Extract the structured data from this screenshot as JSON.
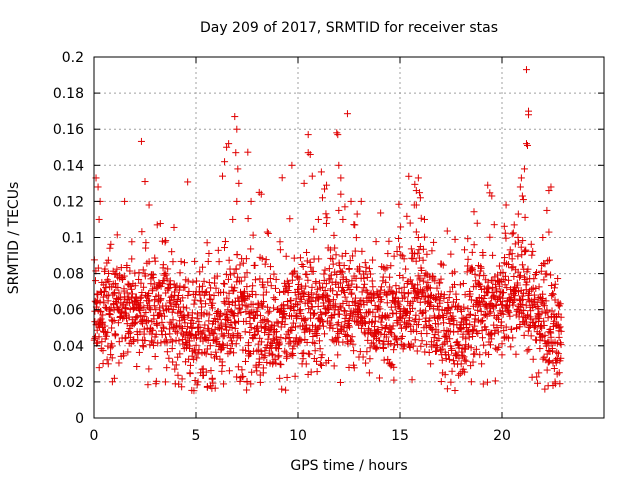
{
  "chart_data": {
    "type": "scatter",
    "title": "Day 209 of 2017, SRMTID for receiver stas",
    "xlabel": "GPS time / hours",
    "ylabel": "SRMTID / TECUs",
    "xlim": [
      0,
      25
    ],
    "ylim": [
      0,
      0.2
    ],
    "xticks": [
      0,
      5,
      10,
      15,
      20
    ],
    "xtick_labels": [
      "0",
      "5",
      "10",
      "15",
      "20"
    ],
    "yticks": [
      0,
      0.02,
      0.04,
      0.06,
      0.08,
      0.1,
      0.12,
      0.14,
      0.16,
      0.18,
      0.2
    ],
    "ytick_labels": [
      "0",
      "0.02",
      "0.04",
      "0.06",
      "0.08",
      "0.1",
      "0.12",
      "0.14",
      "0.16",
      "0.18",
      "0.2"
    ],
    "grid": true,
    "marker": "+",
    "color": "#e00000",
    "x_range_of_data": [
      0,
      22.9
    ],
    "baseline_mean_estimate": [
      [
        0,
        0.06
      ],
      [
        1,
        0.06
      ],
      [
        2,
        0.062
      ],
      [
        3,
        0.06
      ],
      [
        4,
        0.057
      ],
      [
        5,
        0.045
      ],
      [
        6,
        0.05
      ],
      [
        7,
        0.06
      ],
      [
        8,
        0.05
      ],
      [
        9,
        0.052
      ],
      [
        10,
        0.058
      ],
      [
        11,
        0.06
      ],
      [
        12,
        0.062
      ],
      [
        13,
        0.062
      ],
      [
        14,
        0.055
      ],
      [
        15,
        0.065
      ],
      [
        16,
        0.068
      ],
      [
        17,
        0.052
      ],
      [
        18,
        0.045
      ],
      [
        19,
        0.06
      ],
      [
        20,
        0.065
      ],
      [
        21,
        0.065
      ],
      [
        22,
        0.055
      ],
      [
        22.9,
        0.045
      ]
    ],
    "series": [
      {
        "name": "stas",
        "points": [
          [
            0.1,
            0.133
          ],
          [
            0.2,
            0.128
          ],
          [
            0.25,
            0.11
          ],
          [
            0.3,
            0.12
          ],
          [
            0.5,
            0.07
          ],
          [
            1.5,
            0.12
          ],
          [
            2.5,
            0.131
          ],
          [
            2.7,
            0.118
          ],
          [
            3.1,
            0.107
          ],
          [
            5.1,
            0.02
          ],
          [
            5.3,
            0.027
          ],
          [
            5.8,
            0.022
          ],
          [
            6.3,
            0.134
          ],
          [
            6.4,
            0.142
          ],
          [
            6.5,
            0.15
          ],
          [
            6.6,
            0.152
          ],
          [
            6.9,
            0.167
          ],
          [
            7.0,
            0.16
          ],
          [
            6.95,
            0.147
          ],
          [
            7.05,
            0.138
          ],
          [
            7.1,
            0.13
          ],
          [
            7.0,
            0.12
          ],
          [
            6.8,
            0.11
          ],
          [
            7.7,
            0.12
          ],
          [
            8.1,
            0.125
          ],
          [
            8.2,
            0.124
          ],
          [
            9.2,
            0.016
          ],
          [
            9.1,
            0.022
          ],
          [
            9.7,
            0.14
          ],
          [
            10.3,
            0.13
          ],
          [
            10.5,
            0.157
          ],
          [
            10.5,
            0.147
          ],
          [
            10.6,
            0.146
          ],
          [
            10.7,
            0.134
          ],
          [
            11.0,
            0.11
          ],
          [
            11.2,
            0.122
          ],
          [
            11.4,
            0.129
          ],
          [
            11.9,
            0.158
          ],
          [
            11.95,
            0.157
          ],
          [
            12.0,
            0.14
          ],
          [
            12.1,
            0.133
          ],
          [
            12.1,
            0.124
          ],
          [
            12.3,
            0.117
          ],
          [
            12.2,
            0.11
          ],
          [
            12.0,
            0.115
          ],
          [
            12.6,
            0.12
          ],
          [
            12.9,
            0.113
          ],
          [
            13.1,
            0.12
          ],
          [
            14.5,
            0.03
          ],
          [
            14.7,
            0.021
          ],
          [
            15.5,
            0.108
          ],
          [
            15.7,
            0.118
          ],
          [
            15.8,
            0.126
          ],
          [
            15.9,
            0.133
          ],
          [
            15.8,
            0.118
          ],
          [
            16.0,
            0.122
          ],
          [
            15.9,
            0.1
          ],
          [
            16.2,
            0.11
          ],
          [
            16.0,
            0.095
          ],
          [
            18.0,
            0.03
          ],
          [
            18.1,
            0.027
          ],
          [
            17.8,
            0.035
          ],
          [
            19.3,
            0.129
          ],
          [
            19.5,
            0.123
          ],
          [
            20.2,
            0.118
          ],
          [
            20.5,
            0.102
          ],
          [
            20.6,
            0.107
          ],
          [
            20.8,
            0.113
          ],
          [
            20.9,
            0.128
          ],
          [
            21.0,
            0.123
          ],
          [
            21.05,
            0.121
          ],
          [
            20.95,
            0.133
          ],
          [
            21.1,
            0.138
          ],
          [
            21.2,
            0.193
          ],
          [
            21.3,
            0.17
          ],
          [
            21.3,
            0.168
          ],
          [
            21.2,
            0.152
          ],
          [
            21.25,
            0.151
          ],
          [
            22.3,
            0.126
          ],
          [
            22.4,
            0.128
          ],
          [
            22.2,
            0.115
          ],
          [
            22.5,
            0.018
          ],
          [
            22.1,
            0.016
          ],
          [
            22.6,
            0.02
          ],
          [
            21.8,
            0.025
          ],
          [
            22.7,
            0.033
          ],
          [
            22.8,
            0.05
          ],
          [
            22.9,
            0.048
          ],
          [
            22.3,
            0.103
          ],
          [
            22.0,
            0.1
          ],
          [
            1.0,
            0.022
          ],
          [
            0.7,
            0.03
          ],
          [
            3.5,
            0.02
          ],
          [
            4.7,
            0.025
          ],
          [
            7.5,
            0.02
          ],
          [
            8.3,
            0.025
          ],
          [
            10.2,
            0.03
          ],
          [
            12.5,
            0.028
          ],
          [
            13.5,
            0.025
          ],
          [
            16.5,
            0.03
          ],
          [
            19.0,
            0.03
          ],
          [
            20.0,
            0.035
          ]
        ]
      }
    ]
  }
}
